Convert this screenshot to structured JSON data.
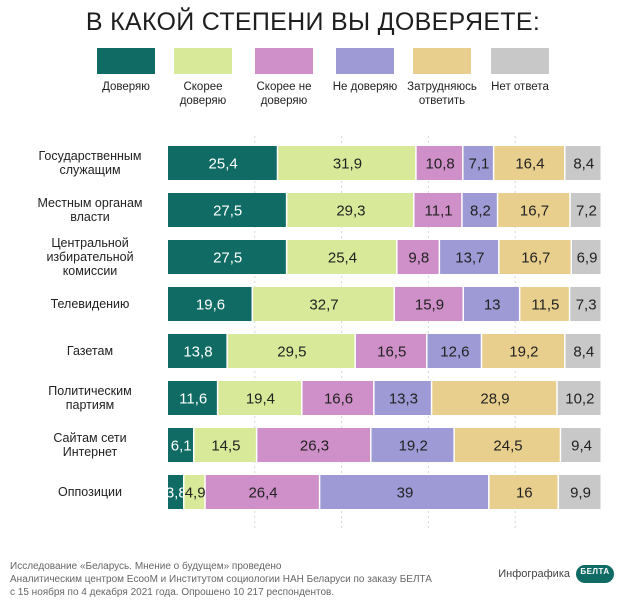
{
  "header": {
    "title": "В КАКОЙ СТЕПЕНИ ВЫ ДОВЕРЯЕТЕ:"
  },
  "legend": [
    {
      "label": "Доверяю",
      "color": "#0f6b63"
    },
    {
      "label": "Скорее доверяю",
      "color": "#d8ea9a"
    },
    {
      "label": "Скорее не доверяю",
      "color": "#cf8fc8"
    },
    {
      "label": "Не доверяю",
      "color": "#9d9ad6"
    },
    {
      "label": "Затрудняюсь ответить",
      "color": "#e8cf8e"
    },
    {
      "label": "Нет ответа",
      "color": "#c8c8c8"
    }
  ],
  "chart_data": {
    "type": "bar",
    "orientation": "horizontal",
    "stacked": true,
    "title": "В КАКОЙ СТЕПЕНИ ВЫ ДОВЕРЯЕТЕ:",
    "categories": [
      "Государственным служащим",
      "Местным органам власти",
      "Центральной избирательной комиссии",
      "Телевидению",
      "Газетам",
      "Политическим партиям",
      "Сайтам сети Интернет",
      "Оппозиции"
    ],
    "series": [
      {
        "name": "Доверяю",
        "color": "#0f6b63",
        "values": [
          25.4,
          27.5,
          27.5,
          19.6,
          13.8,
          11.6,
          6.1,
          3.8
        ],
        "labels": [
          "25,4",
          "27,5",
          "27,5",
          "19,6",
          "13,8",
          "11,6",
          "6,1",
          "3,8"
        ]
      },
      {
        "name": "Скорее доверяю",
        "color": "#d8ea9a",
        "values": [
          31.9,
          29.3,
          25.4,
          32.7,
          29.5,
          19.4,
          14.5,
          4.9
        ],
        "labels": [
          "31,9",
          "29,3",
          "25,4",
          "32,7",
          "29,5",
          "19,4",
          "14,5",
          "4,9"
        ]
      },
      {
        "name": "Скорее не доверяю",
        "color": "#cf8fc8",
        "values": [
          10.8,
          11.1,
          9.8,
          15.9,
          16.5,
          16.6,
          26.3,
          26.4
        ],
        "labels": [
          "10,8",
          "11,1",
          "9,8",
          "15,9",
          "16,5",
          "16,6",
          "26,3",
          "26,4"
        ]
      },
      {
        "name": "Не доверяю",
        "color": "#9d9ad6",
        "values": [
          7.1,
          8.2,
          13.7,
          13,
          12.6,
          13.3,
          19.2,
          39
        ],
        "labels": [
          "7,1",
          "8,2",
          "13,7",
          "13",
          "12,6",
          "13,3",
          "19,2",
          "39"
        ]
      },
      {
        "name": "Затрудняюсь ответить",
        "color": "#e8cf8e",
        "values": [
          16.4,
          16.7,
          16.7,
          11.5,
          19.2,
          28.9,
          24.5,
          16
        ],
        "labels": [
          "16,4",
          "16,7",
          "16,7",
          "11,5",
          "19,2",
          "28,9",
          "24,5",
          "16"
        ]
      },
      {
        "name": "Нет ответа",
        "color": "#c8c8c8",
        "values": [
          8.4,
          7.2,
          6.9,
          7.3,
          8.4,
          10.2,
          9.4,
          9.9
        ],
        "labels": [
          "8,4",
          "7,2",
          "6,9",
          "7,3",
          "8,4",
          "10,2",
          "9,4",
          "9,9"
        ]
      }
    ],
    "xlim": [
      0,
      100
    ],
    "grid": true,
    "legend": "top"
  },
  "footer": {
    "lines": [
      "Исследование «Беларусь. Мнение о будущем» проведено",
      "Аналитическим центром EcooM и Институтом социологии НАН Беларуси по заказу БЕЛТА",
      "с 15 ноября по 4 декабря 2021 года. Опрошено 10 217 респондентов."
    ]
  },
  "brand": {
    "text": "Инфографика",
    "logo": "БЕЛТА"
  }
}
